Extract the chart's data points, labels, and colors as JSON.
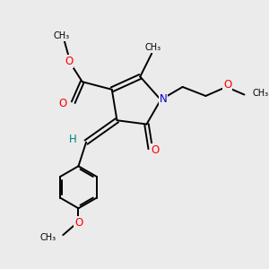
{
  "bg_color": "#ebebeb",
  "bond_color": "#000000",
  "bond_width": 1.4,
  "atom_colors": {
    "O": "#ff0000",
    "N": "#0000cc",
    "H": "#008080",
    "C": "#000000"
  },
  "figsize": [
    3.0,
    3.0
  ],
  "dpi": 100,
  "xlim": [
    0,
    10
  ],
  "ylim": [
    0,
    10
  ]
}
